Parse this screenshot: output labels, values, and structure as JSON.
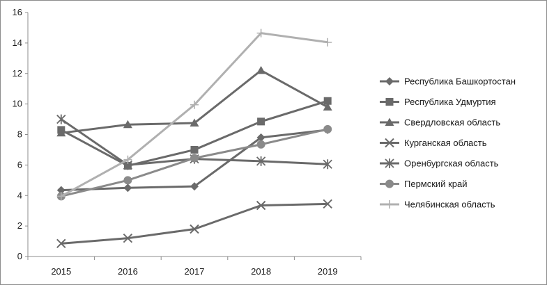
{
  "chart_data": {
    "type": "line",
    "x": [
      "2015",
      "2016",
      "2017",
      "2018",
      "2019"
    ],
    "ylim": [
      0,
      16
    ],
    "yticks": [
      0,
      2,
      4,
      6,
      8,
      10,
      12,
      14,
      16
    ],
    "grid": false,
    "legend": "right",
    "series": [
      {
        "name": "Республика Башкортостан",
        "values": [
          4.35,
          4.5,
          4.6,
          7.8,
          8.3
        ],
        "color": "#6a6a6a",
        "marker": "diamond"
      },
      {
        "name": "Республика Удмуртия",
        "values": [
          8.3,
          5.95,
          7.0,
          8.85,
          10.2
        ],
        "color": "#6a6a6a",
        "marker": "square"
      },
      {
        "name": "Свердловская область",
        "values": [
          8.1,
          8.65,
          8.75,
          12.2,
          9.8
        ],
        "color": "#6a6a6a",
        "marker": "triangle"
      },
      {
        "name": "Курганская область",
        "values": [
          0.85,
          1.2,
          1.8,
          3.35,
          3.45
        ],
        "color": "#6a6a6a",
        "marker": "x"
      },
      {
        "name": "Оренбургская область",
        "values": [
          9.0,
          6.0,
          6.4,
          6.25,
          6.05
        ],
        "color": "#6a6a6a",
        "marker": "star"
      },
      {
        "name": "Пермский край",
        "values": [
          3.95,
          5.0,
          6.45,
          7.35,
          8.35
        ],
        "color": "#8a8a8a",
        "marker": "circle"
      },
      {
        "name": "Челябинская  область",
        "values": [
          3.95,
          6.35,
          9.95,
          14.65,
          14.05
        ],
        "color": "#b0b0b0",
        "marker": "plus"
      }
    ]
  }
}
